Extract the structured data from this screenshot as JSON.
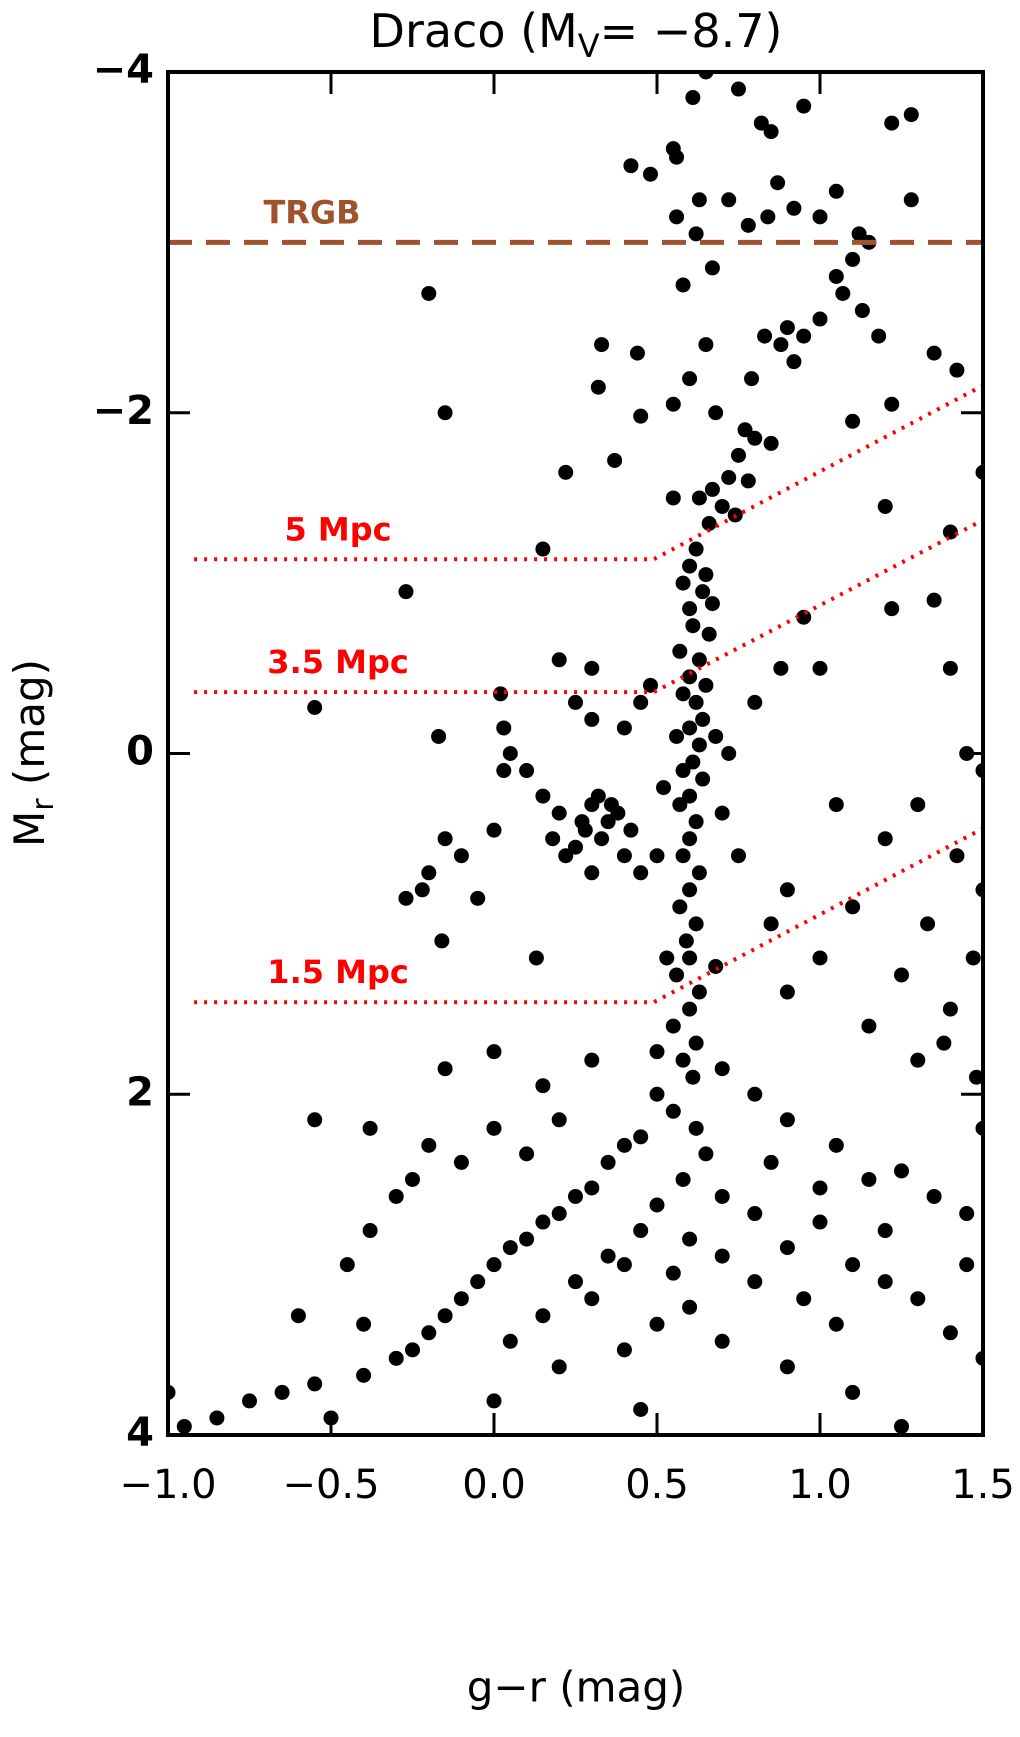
{
  "chart_data": {
    "type": "scatter",
    "title": {
      "main": "Draco (M",
      "sub": "V",
      "end": "= −8.7)"
    },
    "xlabel": "g−r (mag)",
    "ylabel": {
      "main": "M",
      "sub": "r",
      "end": " (mag)"
    },
    "xlim": [
      -1.0,
      1.5
    ],
    "ylim": [
      4,
      -4
    ],
    "xticks": [
      {
        "value": -1.0,
        "label": "−1.0"
      },
      {
        "value": -0.5,
        "label": "−0.5"
      },
      {
        "value": 0.0,
        "label": "0.0"
      },
      {
        "value": 0.5,
        "label": "0.5"
      },
      {
        "value": 1.0,
        "label": "1.0"
      },
      {
        "value": 1.5,
        "label": "1.5"
      }
    ],
    "yticks": [
      {
        "value": -4,
        "label": "−4"
      },
      {
        "value": -2,
        "label": "−2"
      },
      0,
      2,
      4
    ],
    "series": [
      {
        "color": "#000000",
        "x": [
          0.65,
          0.75,
          0.61,
          0.82,
          0.95,
          1.28,
          1.22,
          0.85,
          0.55,
          0.42,
          0.48,
          0.56,
          0.87,
          1.05,
          1.28,
          0.63,
          0.72,
          0.92,
          0.56,
          0.84,
          1.0,
          0.78,
          0.62,
          1.12,
          1.15,
          1.1,
          0.67,
          1.05,
          0.58,
          -0.2,
          1.07,
          1.13,
          1.0,
          0.9,
          0.95,
          0.83,
          0.88,
          0.65,
          0.33,
          0.44,
          1.18,
          1.35,
          1.42,
          0.92,
          0.79,
          0.6,
          0.32,
          0.55,
          0.68,
          -0.15,
          0.45,
          0.77,
          0.8,
          0.85,
          0.75,
          1.1,
          1.22,
          0.37,
          0.22,
          0.72,
          0.78,
          0.67,
          0.63,
          0.55,
          1.5,
          0.7,
          0.74,
          0.66,
          1.2,
          1.4,
          0.62,
          0.6,
          0.65,
          0.58,
          0.64,
          0.67,
          0.6,
          0.61,
          0.66,
          0.57,
          0.63,
          0.6,
          0.65,
          0.58,
          0.62,
          0.64,
          0.6,
          0.56,
          0.63,
          0.61,
          0.58,
          0.64,
          0.6,
          0.57,
          0.62,
          0.6,
          0.58,
          0.63,
          0.6,
          0.57,
          0.62,
          0.59,
          0.6,
          0.56,
          0.63,
          0.6,
          0.55,
          0.62,
          0.58,
          0.61,
          0.52,
          0.48,
          0.45,
          0.5,
          0.68,
          0.7,
          0.53,
          0.68,
          0.5,
          0.7,
          0.3,
          0.35,
          0.28,
          0.33,
          0.38,
          0.25,
          0.4,
          0.2,
          0.15,
          0.1,
          0.05,
          0.03,
          0.32,
          0.36,
          0.27,
          0.42,
          0.22,
          0.3,
          0.18,
          0.45,
          -0.15,
          -0.1,
          -0.2,
          -0.05,
          -0.27,
          0.0,
          0.02,
          0.03,
          0.25,
          0.3,
          -0.27,
          -0.55,
          -0.17,
          -0.22,
          0.13,
          -0.16,
          0.15,
          0.2,
          0.3,
          0.4,
          1.4,
          1.45,
          1.5,
          1.35,
          1.3,
          1.42,
          1.5,
          1.2,
          1.1,
          0.9,
          1.05,
          0.95,
          1.0,
          1.22,
          1.33,
          1.47,
          1.4,
          1.3,
          1.48,
          1.15,
          0.9,
          1.0,
          0.85,
          0.75,
          0.8,
          0.88,
          0.72,
          1.25,
          1.38,
          1.5,
          0.5,
          0.55,
          0.62,
          0.45,
          0.4,
          0.65,
          0.35,
          0.58,
          0.3,
          0.7,
          0.25,
          0.5,
          0.2,
          0.8,
          0.15,
          0.45,
          0.1,
          0.6,
          0.9,
          0.05,
          0.35,
          0.7,
          1.0,
          0.0,
          0.4,
          0.55,
          -0.05,
          0.25,
          0.8,
          1.1,
          -0.1,
          0.3,
          0.6,
          0.95,
          -0.15,
          0.15,
          0.5,
          1.2,
          1.3,
          1.45,
          -0.2,
          0.05,
          0.4,
          0.7,
          1.05,
          1.4,
          -0.25,
          -0.3,
          0.2,
          0.9,
          -0.4,
          -0.55,
          -0.65,
          -0.75,
          -0.85,
          -0.95,
          -1.0,
          -0.5,
          0.0,
          0.45,
          1.1,
          1.25,
          1.5,
          -0.6,
          -0.4,
          -0.45,
          -0.38,
          -0.25,
          -0.2,
          -0.1,
          0.0,
          0.1,
          0.2,
          -0.38,
          -0.55,
          -0.3,
          -0.15,
          0.0,
          0.15,
          0.3,
          0.8,
          0.9,
          1.05,
          1.15,
          1.25,
          1.35,
          1.45,
          1.0,
          0.85,
          1.2
        ],
        "values": [
          -4.0,
          -3.9,
          -3.85,
          -3.7,
          -3.8,
          -3.75,
          -3.7,
          -3.65,
          -3.55,
          -3.45,
          -3.4,
          -3.5,
          -3.35,
          -3.3,
          -3.25,
          -3.25,
          -3.25,
          -3.2,
          -3.15,
          -3.15,
          -3.15,
          -3.1,
          -3.05,
          -3.05,
          -3.0,
          -2.9,
          -2.85,
          -2.8,
          -2.75,
          -2.7,
          -2.7,
          -2.6,
          -2.55,
          -2.5,
          -2.45,
          -2.45,
          -2.4,
          -2.4,
          -2.4,
          -2.35,
          -2.45,
          -2.35,
          -2.25,
          -2.3,
          -2.2,
          -2.2,
          -2.15,
          -2.05,
          -2.0,
          -2.0,
          -1.98,
          -1.9,
          -1.85,
          -1.82,
          -1.75,
          -1.95,
          -2.05,
          -1.72,
          -1.65,
          -1.62,
          -1.6,
          -1.55,
          -1.5,
          -1.5,
          -1.65,
          -1.45,
          -1.4,
          -1.35,
          -1.45,
          -1.3,
          -1.2,
          -1.1,
          -1.05,
          -1.0,
          -0.95,
          -0.88,
          -0.85,
          -0.75,
          -0.7,
          -0.6,
          -0.55,
          -0.45,
          -0.4,
          -0.35,
          -0.3,
          -0.2,
          -0.15,
          -0.1,
          -0.05,
          0.05,
          0.1,
          0.15,
          0.25,
          0.3,
          0.4,
          0.5,
          0.6,
          0.7,
          0.8,
          0.9,
          1.0,
          1.1,
          1.2,
          1.3,
          1.4,
          1.5,
          1.6,
          1.7,
          1.8,
          1.9,
          0.2,
          -0.4,
          -0.3,
          0.6,
          -0.1,
          0.35,
          1.2,
          1.25,
          1.75,
          1.85,
          0.3,
          0.4,
          0.45,
          0.5,
          0.35,
          0.55,
          0.6,
          0.35,
          0.25,
          0.1,
          0.0,
          0.1,
          0.25,
          0.3,
          0.4,
          0.45,
          0.6,
          0.7,
          0.5,
          0.7,
          0.5,
          0.6,
          0.7,
          0.85,
          0.85,
          0.45,
          -0.35,
          -0.15,
          -0.3,
          -0.2,
          -0.95,
          -0.27,
          -0.1,
          0.8,
          1.2,
          1.1,
          -1.2,
          -0.55,
          -0.5,
          -0.15,
          -0.5,
          0.0,
          0.1,
          -0.9,
          0.3,
          0.6,
          0.8,
          0.5,
          0.9,
          0.8,
          0.3,
          -0.8,
          -0.5,
          -0.85,
          1.0,
          1.2,
          1.5,
          1.8,
          1.9,
          1.6,
          1.4,
          1.2,
          1.0,
          0.6,
          -0.3,
          -0.5,
          0.0,
          1.3,
          1.7,
          2.2,
          2.0,
          2.1,
          2.2,
          2.25,
          2.3,
          2.35,
          2.4,
          2.5,
          2.55,
          2.6,
          2.6,
          2.65,
          2.7,
          2.7,
          2.75,
          2.8,
          2.85,
          2.85,
          2.9,
          2.9,
          2.95,
          2.95,
          2.75,
          3.0,
          3.0,
          3.05,
          3.1,
          3.1,
          3.1,
          3.0,
          3.2,
          3.2,
          3.25,
          3.2,
          3.3,
          3.3,
          3.35,
          3.1,
          3.2,
          3.0,
          3.4,
          3.45,
          3.5,
          3.45,
          3.35,
          3.4,
          3.5,
          3.55,
          3.6,
          3.6,
          3.65,
          3.7,
          3.75,
          3.8,
          3.9,
          3.95,
          3.75,
          3.9,
          3.8,
          3.85,
          3.75,
          3.95,
          3.55,
          3.3,
          3.35,
          3.0,
          2.8,
          2.5,
          2.3,
          2.4,
          2.2,
          2.35,
          2.15,
          2.2,
          2.15,
          2.6,
          1.85,
          1.75,
          1.95,
          1.8,
          2.0,
          2.15,
          2.3,
          2.5,
          2.45,
          2.6,
          2.7,
          2.55,
          2.4,
          2.8
        ]
      }
    ],
    "lines": [
      {
        "name": "TRGB",
        "color": "#a0522d",
        "style": "dashed",
        "x": [
          -1.0,
          1.5
        ],
        "values": [
          -3.0,
          -3.0
        ]
      },
      {
        "name": "5 Mpc",
        "color": "#ff0000",
        "style": "dotted",
        "x": [
          -0.92,
          0.49,
          1.5
        ],
        "values": [
          -1.14,
          -1.14,
          -2.16
        ]
      },
      {
        "name": "3.5 Mpc",
        "color": "#ff0000",
        "style": "dotted",
        "x": [
          -0.92,
          0.49,
          1.5
        ],
        "values": [
          -0.36,
          -0.36,
          -1.37
        ]
      },
      {
        "name": "1.5 Mpc",
        "color": "#ff0000",
        "style": "dotted",
        "x": [
          -0.92,
          0.49,
          1.5
        ],
        "values": [
          1.46,
          1.46,
          0.44
        ]
      }
    ]
  }
}
